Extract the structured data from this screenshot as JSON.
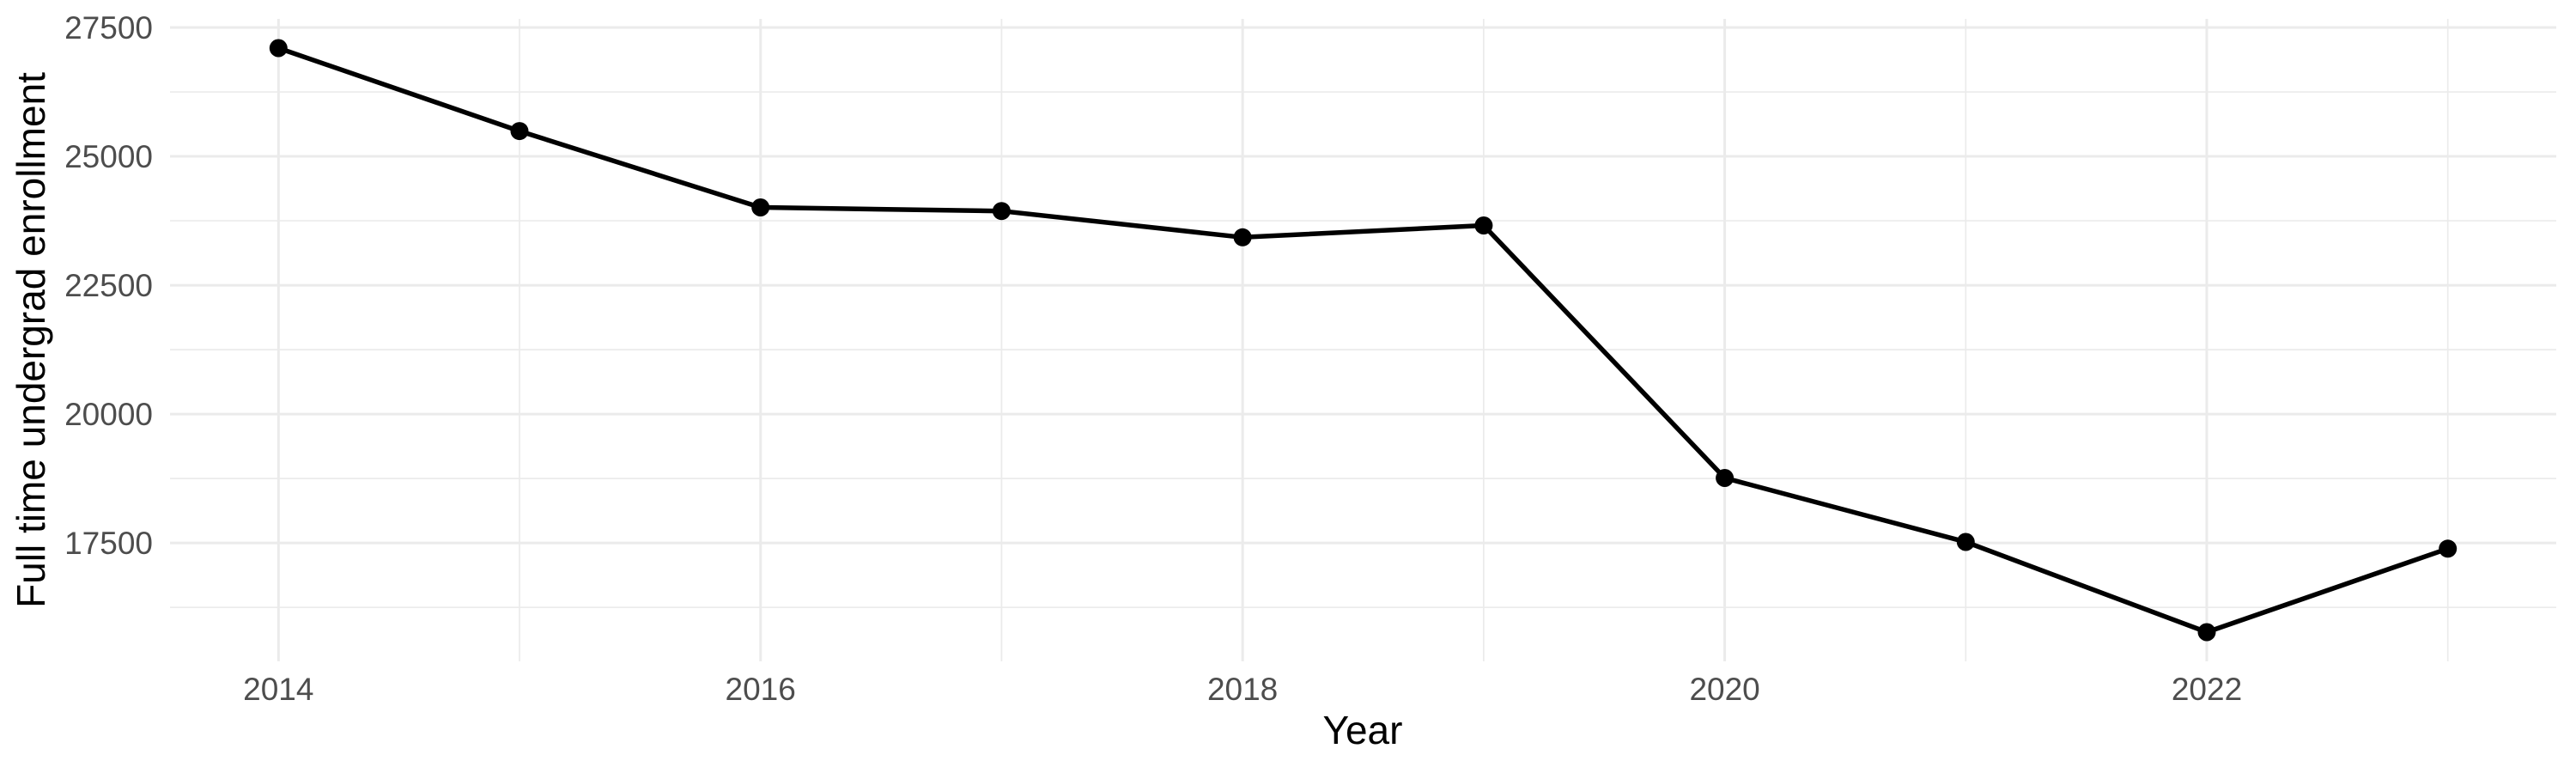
{
  "page": {
    "background": "#FFFFFF"
  },
  "chart_data": {
    "type": "line",
    "title": "",
    "xlabel": "Year",
    "ylabel": "Full time undergrad enrollment",
    "x": [
      2014,
      2015,
      2016,
      2017,
      2018,
      2019,
      2020,
      2021,
      2022,
      2023
    ],
    "series": [
      {
        "name": "Full time undergrad enrollment",
        "values": [
          27100,
          25490,
          24010,
          23940,
          23430,
          23660,
          18760,
          17520,
          15770,
          17390
        ]
      }
    ],
    "x_ticks": [
      2014,
      2016,
      2018,
      2020,
      2022
    ],
    "x_minor_ticks": [
      2015,
      2017,
      2019,
      2021,
      2023
    ],
    "y_ticks": [
      17500,
      20000,
      22500,
      25000,
      27500
    ],
    "y_minor_ticks": [
      16250,
      18750,
      21250,
      23750,
      26250
    ],
    "xlim": [
      2013.55,
      2023.45
    ],
    "ylim": [
      15203,
      27667
    ],
    "grid": true,
    "legend": "none",
    "colors": {
      "line": "#000000",
      "point": "#000000",
      "grid_major": "#EBEBEB",
      "grid_minor": "#EBEBEB",
      "tick_label": "#4D4D4D",
      "axis_title": "#000000",
      "background": "#FFFFFF"
    }
  }
}
